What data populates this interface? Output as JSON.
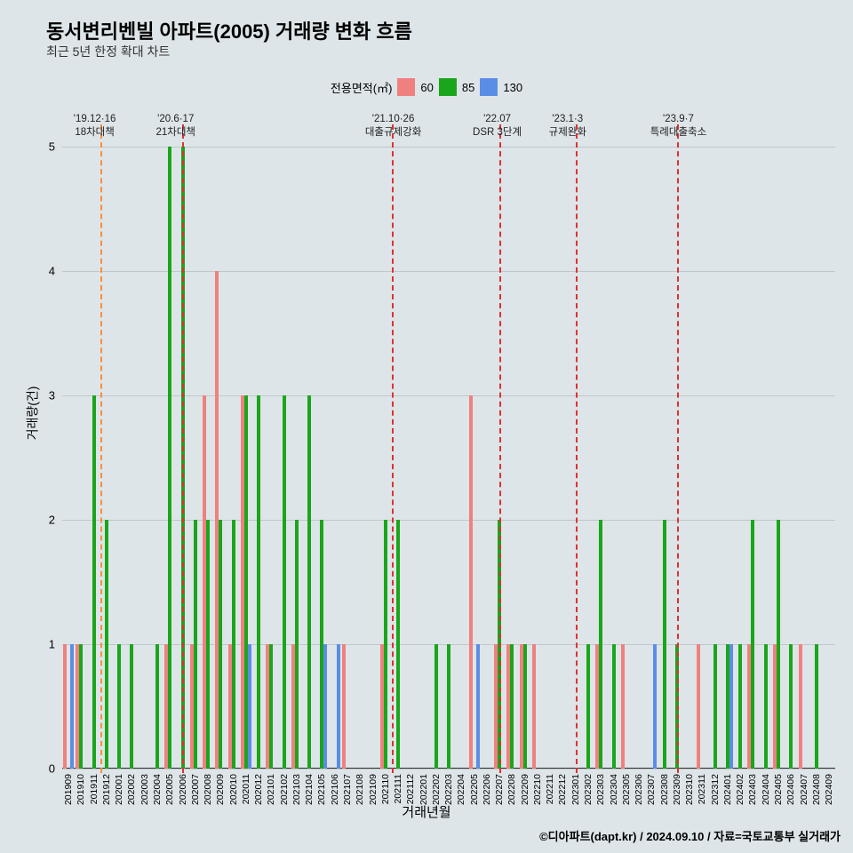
{
  "title": "동서변리벤빌 아파트(2005) 거래량 변화 흐름",
  "subtitle": "최근 5년 한정 확대 차트",
  "legend_label": "전용면적(㎡)",
  "yaxis_label": "거래량(건)",
  "xaxis_label": "거래년월",
  "footer": "©디아파트(dapt.kr) / 2024.09.10 / 자료=국토교통부 실거래가",
  "ylim": [
    0,
    5
  ],
  "yticks": [
    0,
    1,
    2,
    3,
    4,
    5
  ],
  "series": [
    {
      "label": "60",
      "color": "#f08080"
    },
    {
      "label": "85",
      "color": "#1aa61a"
    },
    {
      "label": "130",
      "color": "#5c8de6"
    }
  ],
  "x_categories": [
    "201909",
    "201910",
    "201911",
    "201912",
    "202001",
    "202002",
    "202003",
    "202004",
    "202005",
    "202006",
    "202007",
    "202008",
    "202009",
    "202010",
    "202011",
    "202012",
    "202101",
    "202102",
    "202103",
    "202104",
    "202105",
    "202106",
    "202107",
    "202108",
    "202109",
    "202110",
    "202111",
    "202112",
    "202201",
    "202202",
    "202203",
    "202204",
    "202205",
    "202206",
    "202207",
    "202208",
    "202209",
    "202210",
    "202211",
    "202212",
    "202301",
    "202302",
    "202303",
    "202304",
    "202305",
    "202306",
    "202307",
    "202308",
    "202309",
    "202310",
    "202311",
    "202312",
    "202401",
    "202402",
    "202403",
    "202404",
    "202405",
    "202406",
    "202407",
    "202408",
    "202409"
  ],
  "bars_data": {
    "201909": {
      "s60": 1,
      "s85": 0,
      "s130": 1
    },
    "201910": {
      "s60": 1,
      "s85": 1,
      "s130": 0
    },
    "201911": {
      "s60": 0,
      "s85": 3,
      "s130": 0
    },
    "201912": {
      "s60": 0,
      "s85": 2,
      "s130": 0
    },
    "202001": {
      "s60": 0,
      "s85": 1,
      "s130": 0
    },
    "202002": {
      "s60": 0,
      "s85": 1,
      "s130": 0
    },
    "202003": {
      "s60": 0,
      "s85": 0,
      "s130": 0
    },
    "202004": {
      "s60": 0,
      "s85": 1,
      "s130": 0
    },
    "202005": {
      "s60": 1,
      "s85": 5,
      "s130": 0
    },
    "202006": {
      "s60": 0,
      "s85": 5,
      "s130": 0
    },
    "202007": {
      "s60": 1,
      "s85": 2,
      "s130": 0
    },
    "202008": {
      "s60": 3,
      "s85": 2,
      "s130": 0
    },
    "202009": {
      "s60": 4,
      "s85": 2,
      "s130": 0
    },
    "202010": {
      "s60": 1,
      "s85": 2,
      "s130": 0
    },
    "202011": {
      "s60": 3,
      "s85": 3,
      "s130": 1
    },
    "202012": {
      "s60": 0,
      "s85": 3,
      "s130": 0
    },
    "202101": {
      "s60": 1,
      "s85": 1,
      "s130": 0
    },
    "202102": {
      "s60": 0,
      "s85": 3,
      "s130": 0
    },
    "202103": {
      "s60": 1,
      "s85": 2,
      "s130": 0
    },
    "202104": {
      "s60": 0,
      "s85": 3,
      "s130": 0
    },
    "202105": {
      "s60": 0,
      "s85": 2,
      "s130": 1
    },
    "202106": {
      "s60": 0,
      "s85": 0,
      "s130": 1
    },
    "202107": {
      "s60": 1,
      "s85": 0,
      "s130": 0
    },
    "202108": {
      "s60": 0,
      "s85": 0,
      "s130": 0
    },
    "202109": {
      "s60": 0,
      "s85": 0,
      "s130": 0
    },
    "202110": {
      "s60": 1,
      "s85": 2,
      "s130": 0
    },
    "202111": {
      "s60": 0,
      "s85": 2,
      "s130": 0
    },
    "202112": {
      "s60": 0,
      "s85": 0,
      "s130": 0
    },
    "202201": {
      "s60": 0,
      "s85": 0,
      "s130": 0
    },
    "202202": {
      "s60": 0,
      "s85": 1,
      "s130": 0
    },
    "202203": {
      "s60": 0,
      "s85": 1,
      "s130": 0
    },
    "202204": {
      "s60": 0,
      "s85": 0,
      "s130": 0
    },
    "202205": {
      "s60": 3,
      "s85": 0,
      "s130": 1
    },
    "202206": {
      "s60": 0,
      "s85": 0,
      "s130": 0
    },
    "202207": {
      "s60": 1,
      "s85": 2,
      "s130": 0
    },
    "202208": {
      "s60": 1,
      "s85": 1,
      "s130": 0
    },
    "202209": {
      "s60": 1,
      "s85": 1,
      "s130": 0
    },
    "202210": {
      "s60": 1,
      "s85": 0,
      "s130": 0
    },
    "202211": {
      "s60": 0,
      "s85": 0,
      "s130": 0
    },
    "202212": {
      "s60": 0,
      "s85": 0,
      "s130": 0
    },
    "202301": {
      "s60": 0,
      "s85": 0,
      "s130": 0
    },
    "202302": {
      "s60": 0,
      "s85": 1,
      "s130": 0
    },
    "202303": {
      "s60": 1,
      "s85": 2,
      "s130": 0
    },
    "202304": {
      "s60": 0,
      "s85": 1,
      "s130": 0
    },
    "202305": {
      "s60": 1,
      "s85": 0,
      "s130": 0
    },
    "202306": {
      "s60": 0,
      "s85": 0,
      "s130": 0
    },
    "202307": {
      "s60": 0,
      "s85": 0,
      "s130": 1
    },
    "202308": {
      "s60": 0,
      "s85": 2,
      "s130": 0
    },
    "202309": {
      "s60": 0,
      "s85": 1,
      "s130": 0
    },
    "202310": {
      "s60": 0,
      "s85": 0,
      "s130": 0
    },
    "202311": {
      "s60": 1,
      "s85": 0,
      "s130": 0
    },
    "202312": {
      "s60": 0,
      "s85": 1,
      "s130": 0
    },
    "202401": {
      "s60": 0,
      "s85": 1,
      "s130": 1
    },
    "202402": {
      "s60": 0,
      "s85": 1,
      "s130": 0
    },
    "202403": {
      "s60": 1,
      "s85": 2,
      "s130": 0
    },
    "202404": {
      "s60": 0,
      "s85": 1,
      "s130": 0
    },
    "202405": {
      "s60": 1,
      "s85": 2,
      "s130": 0
    },
    "202406": {
      "s60": 0,
      "s85": 1,
      "s130": 0
    },
    "202407": {
      "s60": 1,
      "s85": 0,
      "s130": 0
    },
    "202408": {
      "s60": 0,
      "s85": 1,
      "s130": 0
    },
    "202409": {
      "s60": 0,
      "s85": 0,
      "s130": 0
    }
  },
  "vlines": [
    {
      "x": "201912_pre",
      "color": "#ff8c3c",
      "label1": "'19.12·16",
      "label2": "18차대책",
      "pos_index": 2.5
    },
    {
      "x": "202006",
      "color": "#e03030",
      "label1": "'20.6·17",
      "label2": "21차대책",
      "pos_index": 9
    },
    {
      "x": "202110_mid",
      "color": "#e03030",
      "label1": "'21.10·26",
      "label2": "대출규제강화",
      "pos_index": 25.5
    },
    {
      "x": "202207",
      "color": "#e03030",
      "label1": "'22.07",
      "label2": "DSR 3단계",
      "pos_index": 34
    },
    {
      "x": "202301",
      "color": "#e03030",
      "label1": "'23.1·3",
      "label2": "규제완화",
      "pos_index": 40
    },
    {
      "x": "202309",
      "color": "#e03030",
      "label1": "'23.9·7",
      "label2": "특례대출축소",
      "pos_index": 48
    }
  ]
}
